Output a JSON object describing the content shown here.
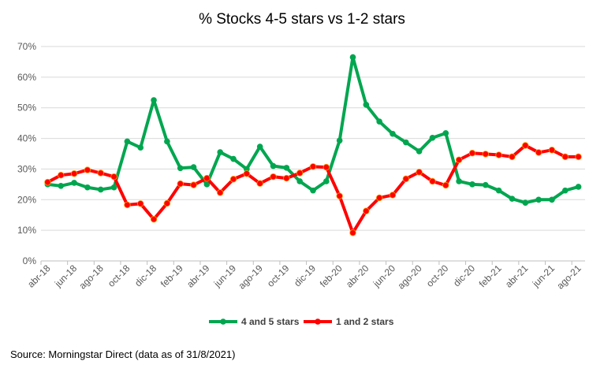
{
  "chart_data": {
    "type": "line",
    "title": "% Stocks 4-5 stars vs 1-2 stars",
    "xlabel": "",
    "ylabel": "",
    "ylim": [
      0,
      70
    ],
    "yticks": [
      "0%",
      "10%",
      "20%",
      "30%",
      "40%",
      "50%",
      "60%",
      "70%"
    ],
    "grid": true,
    "legend_position": "bottom",
    "x": [
      "abr-18",
      "may-18",
      "jun-18",
      "jul-18",
      "ago-18",
      "sep-18",
      "oct-18",
      "nov-18",
      "dic-18",
      "ene-19",
      "feb-19",
      "mar-19",
      "abr-19",
      "may-19",
      "jun-19",
      "jul-19",
      "ago-19",
      "sep-19",
      "oct-19",
      "nov-19",
      "dic-19",
      "ene-20",
      "feb-20",
      "mar-20",
      "abr-20",
      "may-20",
      "jun-20",
      "jul-20",
      "ago-20",
      "sep-20",
      "oct-20",
      "nov-20",
      "dic-20",
      "ene-21",
      "feb-21",
      "mar-21",
      "abr-21",
      "may-21",
      "jun-21",
      "jul-21",
      "ago-21"
    ],
    "xtick_labels": [
      "abr-18",
      "jun-18",
      "ago-18",
      "oct-18",
      "dic-18",
      "feb-19",
      "abr-19",
      "jun-19",
      "ago-19",
      "oct-19",
      "dic-19",
      "feb-20",
      "abr-20",
      "jun-20",
      "ago-20",
      "oct-20",
      "dic-20",
      "feb-21",
      "abr-21",
      "jun-21",
      "ago-21"
    ],
    "series": [
      {
        "name": "4 and 5 stars",
        "color": "#00A64F",
        "values": [
          25,
          24.5,
          25.5,
          24,
          23.3,
          24,
          39,
          37,
          52.5,
          39,
          30.3,
          30.6,
          25,
          35.5,
          33.3,
          30,
          37.3,
          31,
          30.4,
          26,
          23,
          26,
          39.3,
          66.5,
          51,
          45.5,
          41.5,
          38.7,
          35.8,
          40.2,
          41.7,
          26,
          25,
          24.8,
          23,
          20.3,
          19,
          20,
          20,
          23,
          24.2
        ]
      },
      {
        "name": "1 and 2 stars",
        "color": "#FF0000",
        "values": [
          25.7,
          28,
          28.5,
          29.7,
          28.7,
          27.5,
          18.3,
          18.7,
          13.6,
          18.8,
          25.2,
          24.8,
          27,
          22.3,
          26.7,
          28.5,
          25.3,
          27.5,
          27,
          28.7,
          30.8,
          30.6,
          21.2,
          9.2,
          16.3,
          20.6,
          21.5,
          26.8,
          29,
          26,
          24.7,
          33,
          35.2,
          34.9,
          34.6,
          34,
          37.7,
          35.4,
          36.2,
          34,
          34
        ]
      }
    ]
  },
  "source": "Source: Morningstar Direct (data as of 31/8/2021)"
}
